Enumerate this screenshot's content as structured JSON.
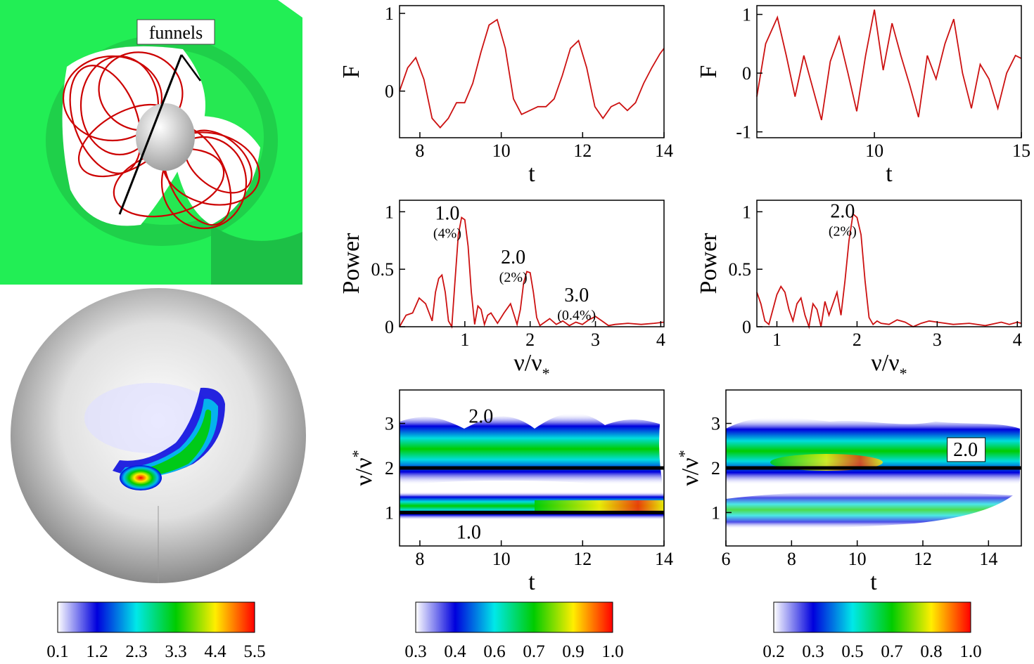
{
  "scene3d": {
    "label": "funnels"
  },
  "colorbars": [
    {
      "ticks": [
        "0.1",
        "1.2",
        "2.3",
        "3.3",
        "4.4",
        "5.5"
      ]
    },
    {
      "ticks": [
        "0.3",
        "0.4",
        "0.6",
        "0.7",
        "0.9",
        "1.0"
      ]
    },
    {
      "ticks": [
        "0.2",
        "0.3",
        "0.5",
        "0.7",
        "0.8",
        "1.0"
      ]
    }
  ],
  "chart_data": [
    {
      "id": "flux-left",
      "type": "line",
      "xlabel": "t",
      "ylabel": "F",
      "xlim": [
        7.5,
        14
      ],
      "ylim": [
        -0.6,
        1.1
      ],
      "xticks": [
        8,
        10,
        12,
        14
      ],
      "yticks": [
        0,
        1
      ],
      "series": [
        {
          "name": "F(t)",
          "color": "#cc1111",
          "x": [
            7.5,
            7.7,
            7.9,
            8.1,
            8.3,
            8.5,
            8.7,
            8.9,
            9.1,
            9.3,
            9.5,
            9.7,
            9.9,
            10.1,
            10.3,
            10.5,
            10.7,
            10.9,
            11.1,
            11.3,
            11.5,
            11.7,
            11.9,
            12.1,
            12.3,
            12.5,
            12.7,
            12.9,
            13.1,
            13.3,
            13.5,
            13.7,
            13.9,
            14.0
          ],
          "y": [
            0.0,
            0.3,
            0.43,
            0.15,
            -0.35,
            -0.47,
            -0.35,
            -0.15,
            -0.15,
            0.1,
            0.5,
            0.85,
            0.92,
            0.55,
            -0.1,
            -0.3,
            -0.25,
            -0.2,
            -0.2,
            -0.1,
            0.2,
            0.55,
            0.65,
            0.3,
            -0.2,
            -0.35,
            -0.2,
            -0.15,
            -0.25,
            -0.15,
            0.1,
            0.3,
            0.48,
            0.55
          ]
        }
      ]
    },
    {
      "id": "flux-right",
      "type": "line",
      "xlabel": "t",
      "ylabel": "F",
      "xlim": [
        6,
        15
      ],
      "ylim": [
        -1.1,
        1.15
      ],
      "xticks": [
        10,
        15
      ],
      "yticks": [
        -1,
        0,
        1
      ],
      "series": [
        {
          "name": "F(t)",
          "color": "#cc1111",
          "x": [
            6.0,
            6.3,
            6.7,
            7.0,
            7.3,
            7.6,
            7.9,
            8.2,
            8.5,
            8.8,
            9.1,
            9.4,
            9.7,
            10.0,
            10.3,
            10.6,
            10.9,
            11.2,
            11.5,
            11.8,
            12.1,
            12.4,
            12.7,
            13.0,
            13.3,
            13.6,
            13.9,
            14.2,
            14.5,
            14.8,
            15.0
          ],
          "y": [
            -0.4,
            0.5,
            0.95,
            0.3,
            -0.4,
            0.3,
            -0.25,
            -0.8,
            0.2,
            0.62,
            0.0,
            -0.65,
            0.3,
            1.08,
            0.05,
            0.85,
            0.3,
            -0.2,
            -0.75,
            0.3,
            -0.1,
            0.5,
            0.92,
            0.0,
            -0.6,
            0.15,
            -0.1,
            -0.6,
            0.0,
            0.3,
            0.25
          ]
        }
      ]
    },
    {
      "id": "power-left",
      "type": "line",
      "xlabel": "ν/ν",
      "xlabel_sub": "*",
      "ylabel": "Power",
      "xlim": [
        0,
        4.05
      ],
      "ylim": [
        0,
        1.1
      ],
      "xticks": [
        1,
        2,
        3,
        4
      ],
      "yticks": [
        0,
        0.5,
        1
      ],
      "series": [
        {
          "name": "Power",
          "color": "#cc1111",
          "x": [
            0.0,
            0.1,
            0.2,
            0.3,
            0.4,
            0.5,
            0.55,
            0.6,
            0.65,
            0.7,
            0.75,
            0.8,
            0.85,
            0.9,
            0.95,
            1.0,
            1.05,
            1.1,
            1.15,
            1.2,
            1.25,
            1.3,
            1.35,
            1.4,
            1.5,
            1.6,
            1.7,
            1.8,
            1.85,
            1.9,
            1.95,
            2.0,
            2.05,
            2.1,
            2.15,
            2.2,
            2.3,
            2.4,
            2.5,
            2.6,
            2.7,
            2.8,
            2.9,
            3.0,
            3.1,
            3.2,
            3.3,
            3.5,
            3.7,
            3.9,
            4.05
          ],
          "y": [
            0.0,
            0.1,
            0.12,
            0.25,
            0.2,
            0.05,
            0.3,
            0.42,
            0.45,
            0.3,
            0.05,
            0.0,
            0.4,
            0.8,
            0.95,
            0.93,
            0.7,
            0.3,
            0.02,
            0.18,
            0.15,
            0.02,
            0.1,
            0.12,
            0.03,
            0.12,
            0.2,
            0.02,
            0.15,
            0.38,
            0.48,
            0.47,
            0.3,
            0.08,
            0.01,
            0.03,
            0.07,
            0.02,
            0.05,
            0.01,
            0.04,
            0.02,
            0.06,
            0.09,
            0.05,
            0.01,
            0.02,
            0.03,
            0.02,
            0.03,
            0.04
          ]
        }
      ],
      "annotations": [
        {
          "text": "1.0",
          "sub": "(4%)"
        },
        {
          "text": "2.0",
          "sub": "(2%)"
        },
        {
          "text": "3.0",
          "sub": "(0.4%)"
        }
      ]
    },
    {
      "id": "power-right",
      "type": "line",
      "xlabel": "ν/ν",
      "xlabel_sub": "*",
      "ylabel": "Power",
      "xlim": [
        0.75,
        4.05
      ],
      "ylim": [
        0,
        1.1
      ],
      "xticks": [
        1,
        2,
        3,
        4
      ],
      "yticks": [
        0,
        0.5,
        1
      ],
      "series": [
        {
          "name": "Power",
          "color": "#cc1111",
          "x": [
            0.75,
            0.8,
            0.85,
            0.9,
            0.95,
            1.0,
            1.05,
            1.1,
            1.15,
            1.2,
            1.25,
            1.3,
            1.35,
            1.4,
            1.45,
            1.5,
            1.55,
            1.6,
            1.65,
            1.7,
            1.75,
            1.8,
            1.85,
            1.9,
            1.95,
            2.0,
            2.05,
            2.1,
            2.15,
            2.2,
            2.25,
            2.3,
            2.4,
            2.5,
            2.6,
            2.7,
            2.8,
            2.9,
            3.0,
            3.2,
            3.4,
            3.6,
            3.8,
            3.9,
            4.0,
            4.05
          ],
          "y": [
            0.3,
            0.2,
            0.05,
            0.02,
            0.15,
            0.28,
            0.35,
            0.3,
            0.15,
            0.05,
            0.2,
            0.25,
            0.1,
            0.0,
            0.2,
            0.15,
            0.0,
            0.22,
            0.1,
            0.2,
            0.3,
            0.1,
            0.4,
            0.75,
            0.98,
            0.95,
            0.8,
            0.4,
            0.08,
            0.02,
            0.05,
            0.03,
            0.02,
            0.06,
            0.04,
            0.0,
            0.03,
            0.05,
            0.04,
            0.02,
            0.03,
            0.01,
            0.04,
            0.02,
            0.04,
            0.03
          ]
        }
      ],
      "annotations": [
        {
          "text": "2.0",
          "sub": "(2%)"
        }
      ]
    },
    {
      "id": "wavelet-left",
      "type": "heatmap",
      "xlabel": "t",
      "ylabel": "ν/ν",
      "ylabel_sub": "*",
      "xlim": [
        7.5,
        14
      ],
      "ylim": [
        0.25,
        3.75
      ],
      "xticks": [
        8,
        10,
        12,
        14
      ],
      "yticks": [
        1,
        2,
        3
      ],
      "ridges": [
        2.0,
        1.0
      ],
      "annotations": [
        {
          "text": "2.0"
        },
        {
          "text": "1.0"
        }
      ]
    },
    {
      "id": "wavelet-right",
      "type": "heatmap",
      "xlabel": "t",
      "ylabel": "ν/ν",
      "ylabel_sub": "*",
      "xlim": [
        6,
        15
      ],
      "ylim": [
        0.25,
        3.75
      ],
      "xticks": [
        6,
        8,
        10,
        12,
        14
      ],
      "yticks": [
        1,
        2,
        3
      ],
      "ridges": [
        2.0
      ],
      "annotations": [
        {
          "text": "2.0"
        }
      ]
    }
  ]
}
